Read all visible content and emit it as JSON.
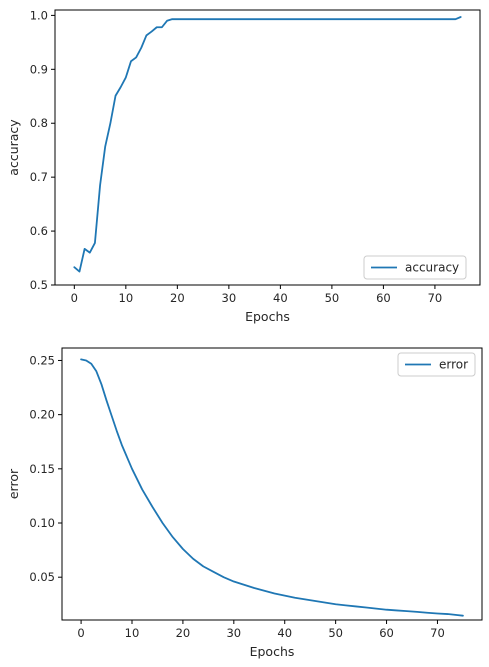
{
  "chart_data": [
    {
      "type": "line",
      "xlabel": "Epochs",
      "ylabel": "accuracy",
      "xlim": [
        -3.75,
        78.75
      ],
      "ylim": [
        0.5,
        1.01
      ],
      "xticks": [
        0,
        10,
        20,
        30,
        40,
        50,
        60,
        70
      ],
      "yticks": [
        0.5,
        0.6,
        0.7,
        0.8,
        0.9,
        1.0
      ],
      "ytick_labels": [
        "0.5",
        "0.6",
        "0.7",
        "0.8",
        "0.9",
        "1.0"
      ],
      "legend_position": "lower-right",
      "series": [
        {
          "name": "accuracy",
          "color": "#1f77b4",
          "x": [
            0,
            1,
            2,
            3,
            4,
            5,
            6,
            7,
            8,
            9,
            10,
            11,
            12,
            13,
            14,
            15,
            16,
            17,
            18,
            19,
            20,
            21,
            22,
            23,
            24,
            25,
            26,
            27,
            28,
            29,
            30,
            31,
            32,
            33,
            34,
            35,
            36,
            37,
            38,
            39,
            40,
            41,
            42,
            43,
            44,
            45,
            46,
            47,
            48,
            49,
            50,
            51,
            52,
            53,
            54,
            55,
            56,
            57,
            58,
            59,
            60,
            61,
            62,
            63,
            64,
            65,
            66,
            67,
            68,
            69,
            70,
            71,
            72,
            73,
            74,
            75
          ],
          "y": [
            0.533,
            0.525,
            0.567,
            0.56,
            0.578,
            0.685,
            0.757,
            0.8,
            0.851,
            0.867,
            0.885,
            0.915,
            0.922,
            0.94,
            0.963,
            0.97,
            0.978,
            0.978,
            0.99,
            0.993,
            0.993,
            0.993,
            0.993,
            0.993,
            0.993,
            0.993,
            0.993,
            0.993,
            0.993,
            0.993,
            0.993,
            0.993,
            0.993,
            0.993,
            0.993,
            0.993,
            0.993,
            0.993,
            0.993,
            0.993,
            0.993,
            0.993,
            0.993,
            0.993,
            0.993,
            0.993,
            0.993,
            0.993,
            0.993,
            0.993,
            0.993,
            0.993,
            0.993,
            0.993,
            0.993,
            0.993,
            0.993,
            0.993,
            0.993,
            0.993,
            0.993,
            0.993,
            0.993,
            0.993,
            0.993,
            0.993,
            0.993,
            0.993,
            0.993,
            0.993,
            0.993,
            0.993,
            0.993,
            0.993,
            0.993,
            0.997
          ]
        }
      ]
    },
    {
      "type": "line",
      "xlabel": "Epochs",
      "ylabel": "error",
      "xlim": [
        -3.75,
        78.75
      ],
      "ylim": [
        0.0105,
        0.2615
      ],
      "xticks": [
        0,
        10,
        20,
        30,
        40,
        50,
        60,
        70
      ],
      "yticks": [
        0.05,
        0.1,
        0.15,
        0.2,
        0.25
      ],
      "ytick_labels": [
        "0.05",
        "0.10",
        "0.15",
        "0.20",
        "0.25"
      ],
      "legend_position": "top-right",
      "series": [
        {
          "name": "error",
          "color": "#1f77b4",
          "x": [
            0,
            1,
            2,
            3,
            4,
            5,
            6,
            7,
            8,
            10,
            12,
            14,
            16,
            18,
            20,
            22,
            24,
            26,
            28,
            30,
            32,
            34,
            36,
            38,
            40,
            42,
            44,
            46,
            48,
            50,
            52,
            54,
            56,
            58,
            60,
            62,
            64,
            66,
            68,
            70,
            72,
            74,
            75
          ],
          "y": [
            0.251,
            0.25,
            0.247,
            0.24,
            0.228,
            0.213,
            0.199,
            0.185,
            0.172,
            0.15,
            0.131,
            0.115,
            0.1,
            0.087,
            0.076,
            0.067,
            0.06,
            0.055,
            0.05,
            0.046,
            0.043,
            0.04,
            0.0375,
            0.035,
            0.033,
            0.031,
            0.0295,
            0.028,
            0.0265,
            0.025,
            0.024,
            0.023,
            0.022,
            0.021,
            0.02,
            0.0193,
            0.0187,
            0.018,
            0.0172,
            0.0165,
            0.016,
            0.015,
            0.0145
          ]
        }
      ]
    }
  ]
}
